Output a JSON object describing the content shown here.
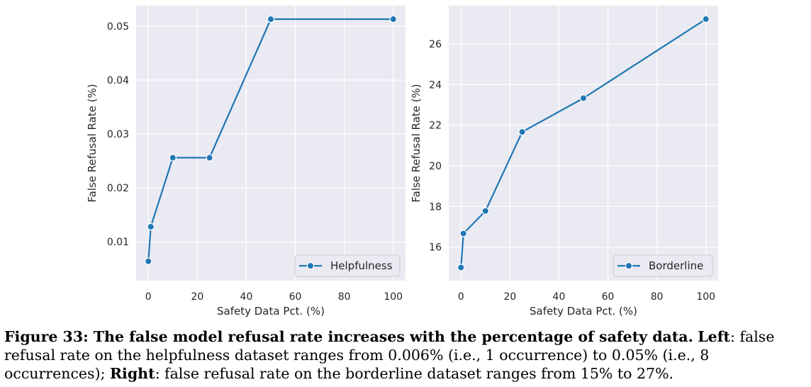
{
  "chart_data": [
    {
      "type": "line",
      "xlabel": "Safety Data Pct. (%)",
      "ylabel": "False Refusal Rate (%)",
      "xlim": [
        -5,
        105
      ],
      "ylim": [
        0.0028,
        0.0538
      ],
      "xticks": [
        0,
        20,
        40,
        60,
        80,
        100
      ],
      "yticks": [
        0.01,
        0.02,
        0.03,
        0.04,
        0.05
      ],
      "xtick_labels": [
        "0",
        "20",
        "40",
        "60",
        "80",
        "100"
      ],
      "ytick_labels": [
        "0.01",
        "0.02",
        "0.03",
        "0.04",
        "0.05"
      ],
      "grid": true,
      "legend": "lower-right",
      "color": "#1f77b4",
      "series": [
        {
          "name": "Helpfulness",
          "x": [
            0,
            1,
            10,
            25,
            50,
            100
          ],
          "y": [
            0.0064,
            0.0128,
            0.0256,
            0.0256,
            0.0513,
            0.0513
          ]
        }
      ]
    },
    {
      "type": "line",
      "xlabel": "Safety Data Pct. (%)",
      "ylabel": "False Refusal Rate (%)",
      "xlim": [
        -5,
        105
      ],
      "ylim": [
        14.35,
        27.88
      ],
      "xticks": [
        0,
        20,
        40,
        60,
        80,
        100
      ],
      "yticks": [
        16,
        18,
        20,
        22,
        24,
        26
      ],
      "xtick_labels": [
        "0",
        "20",
        "40",
        "60",
        "80",
        "100"
      ],
      "ytick_labels": [
        "16",
        "18",
        "20",
        "22",
        "24",
        "26"
      ],
      "grid": true,
      "legend": "lower-right",
      "color": "#1f77b4",
      "series": [
        {
          "name": "Borderline",
          "x": [
            0,
            1,
            10,
            25,
            50,
            100
          ],
          "y": [
            15.0,
            16.67,
            17.78,
            21.67,
            23.33,
            27.22
          ]
        }
      ]
    }
  ],
  "caption": {
    "label": "Figure 33:",
    "bold_text": "The false model refusal rate increases with the percentage of safety data.",
    "left_label": "Left",
    "left_text": ": false refusal rate on the helpfulness dataset ranges from 0.006% (i.e., 1 occurrence) to 0.05% (i.e., 8 occurrences);",
    "right_label": "Right",
    "right_text": ": false refusal rate on the borderline dataset ranges from 15% to 27%."
  }
}
